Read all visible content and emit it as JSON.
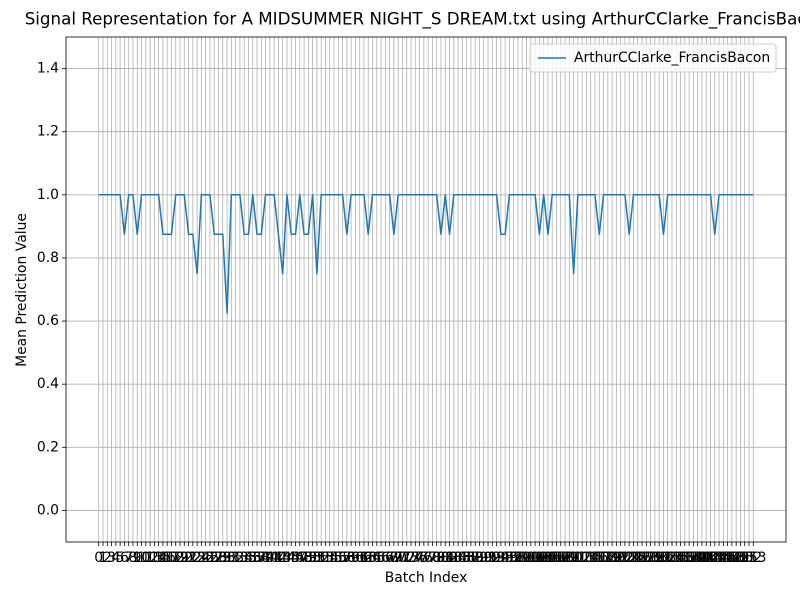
{
  "chart_data": {
    "type": "line",
    "title": "Signal Representation for A MIDSUMMER NIGHT_S DREAM.txt using ArthurCClarke_FrancisBacon",
    "x_label": "Batch Index",
    "y_label": "Mean Prediction Value",
    "x": [
      0,
      1,
      2,
      3,
      4,
      5,
      6,
      7,
      8,
      9,
      10,
      11,
      12,
      13,
      14,
      15,
      16,
      17,
      18,
      19,
      20,
      21,
      22,
      23,
      24,
      25,
      26,
      27,
      28,
      29,
      30,
      31,
      32,
      33,
      34,
      35,
      36,
      37,
      38,
      39,
      40,
      41,
      42,
      43,
      44,
      45,
      46,
      47,
      48,
      49,
      50,
      51,
      52,
      53,
      54,
      55,
      56,
      57,
      58,
      59,
      60,
      61,
      62,
      63,
      64,
      65,
      66,
      67,
      68,
      69,
      70,
      71,
      72,
      73,
      74,
      75,
      76,
      77,
      78,
      79,
      80,
      81,
      82,
      83,
      84,
      85,
      86,
      87,
      88,
      89,
      90,
      91,
      92,
      93,
      94,
      95,
      96,
      97,
      98,
      99,
      100,
      101,
      102,
      103,
      104,
      105,
      106,
      107,
      108,
      109,
      110,
      111,
      112,
      113,
      114,
      115,
      116,
      117,
      118,
      119,
      120,
      121,
      122,
      123,
      124,
      125,
      126,
      127,
      128,
      129,
      130,
      131,
      132,
      133,
      134,
      135,
      136,
      137,
      138,
      139,
      140,
      141,
      142,
      143,
      144,
      145,
      146,
      147,
      148,
      149,
      150,
      151,
      152,
      153
    ],
    "series": [
      {
        "name": "ArthurCClarke_FrancisBacon",
        "color": "#1f77b4",
        "values": [
          1,
          1,
          1,
          1,
          1,
          1,
          0.875,
          1,
          1,
          0.875,
          1,
          1,
          1,
          1,
          1,
          0.875,
          0.875,
          0.875,
          1,
          1,
          1,
          0.875,
          0.875,
          0.75,
          1,
          1,
          1,
          0.875,
          0.875,
          0.875,
          0.625,
          1,
          1,
          1,
          0.875,
          0.875,
          1,
          0.875,
          0.875,
          1,
          1,
          1,
          0.875,
          0.75,
          1,
          0.875,
          0.875,
          1,
          0.875,
          0.875,
          1,
          0.75,
          1,
          1,
          1,
          1,
          1,
          1,
          0.875,
          1,
          1,
          1,
          1,
          0.875,
          1,
          1,
          1,
          1,
          1,
          0.875,
          1,
          1,
          1,
          1,
          1,
          1,
          1,
          1,
          1,
          1,
          0.875,
          1,
          0.875,
          1,
          1,
          1,
          1,
          1,
          1,
          1,
          1,
          1,
          1,
          1,
          0.875,
          0.875,
          1,
          1,
          1,
          1,
          1,
          1,
          1,
          0.875,
          1,
          0.875,
          1,
          1,
          1,
          1,
          1,
          0.75,
          1,
          1,
          1,
          1,
          1,
          0.875,
          1,
          1,
          1,
          1,
          1,
          1,
          0.875,
          1,
          1,
          1,
          1,
          1,
          1,
          1,
          0.875,
          1,
          1,
          1,
          1,
          1,
          1,
          1,
          1,
          1,
          1,
          1,
          0.875,
          1,
          1,
          1,
          1,
          1,
          1,
          1,
          1,
          1
        ]
      }
    ],
    "xlim": [
      -7.65,
      160.65
    ],
    "xticks": [
      0,
      1,
      2,
      3,
      4,
      5,
      6,
      7,
      8,
      9,
      10,
      11,
      12,
      13,
      14,
      15,
      16,
      17,
      18,
      19,
      20,
      21,
      22,
      23,
      24,
      25,
      26,
      27,
      28,
      29,
      30,
      31,
      32,
      33,
      34,
      35,
      36,
      37,
      38,
      39,
      40,
      41,
      42,
      43,
      44,
      45,
      46,
      47,
      48,
      49,
      50,
      51,
      52,
      53,
      54,
      55,
      56,
      57,
      58,
      59,
      60,
      61,
      62,
      63,
      64,
      65,
      66,
      67,
      68,
      69,
      70,
      71,
      72,
      73,
      74,
      75,
      76,
      77,
      78,
      79,
      80,
      81,
      82,
      83,
      84,
      85,
      86,
      87,
      88,
      89,
      90,
      91,
      92,
      93,
      94,
      95,
      96,
      97,
      98,
      99,
      100,
      101,
      102,
      103,
      104,
      105,
      106,
      107,
      108,
      109,
      110,
      111,
      112,
      113,
      114,
      115,
      116,
      117,
      118,
      119,
      120,
      121,
      122,
      123,
      124,
      125,
      126,
      127,
      128,
      129,
      130,
      131,
      132,
      133,
      134,
      135,
      136,
      137,
      138,
      139,
      140,
      141,
      142,
      143,
      144,
      145,
      146,
      147,
      148,
      149,
      150,
      151,
      152,
      153
    ],
    "ylim": [
      -0.1,
      1.5
    ],
    "yticks": [
      {
        "value": 0,
        "label": "0.0"
      },
      {
        "value": 0.2,
        "label": "0.2"
      },
      {
        "value": 0.4,
        "label": "0.4"
      },
      {
        "value": 0.6,
        "label": "0.6"
      },
      {
        "value": 0.8,
        "label": "0.8"
      },
      {
        "value": 1,
        "label": "1.0"
      },
      {
        "value": 1.2,
        "label": "1.2"
      },
      {
        "value": 1.4,
        "label": "1.4"
      }
    ],
    "grid": true,
    "legend": "upper right"
  }
}
